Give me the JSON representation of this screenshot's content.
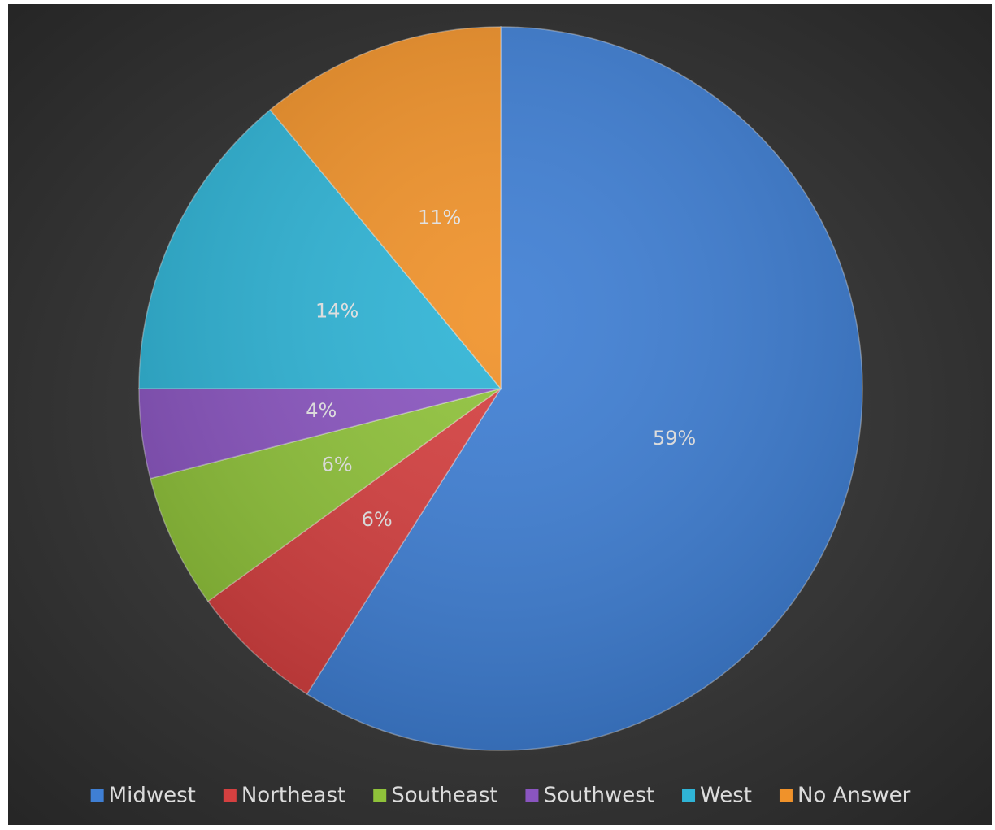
{
  "chart_data": {
    "type": "pie",
    "categories": [
      "Midwest",
      "Northeast",
      "Southeast",
      "Southwest",
      "West",
      "No Answer"
    ],
    "values": [
      59,
      6,
      6,
      4,
      14,
      11
    ],
    "value_labels": [
      "59%",
      "6%",
      "6%",
      "4%",
      "14%",
      "11%"
    ],
    "colors": [
      "#3f7fd4",
      "#d54040",
      "#8fc23a",
      "#8a55c0",
      "#2fb4d6",
      "#f0922a"
    ],
    "legend": "bottom"
  }
}
